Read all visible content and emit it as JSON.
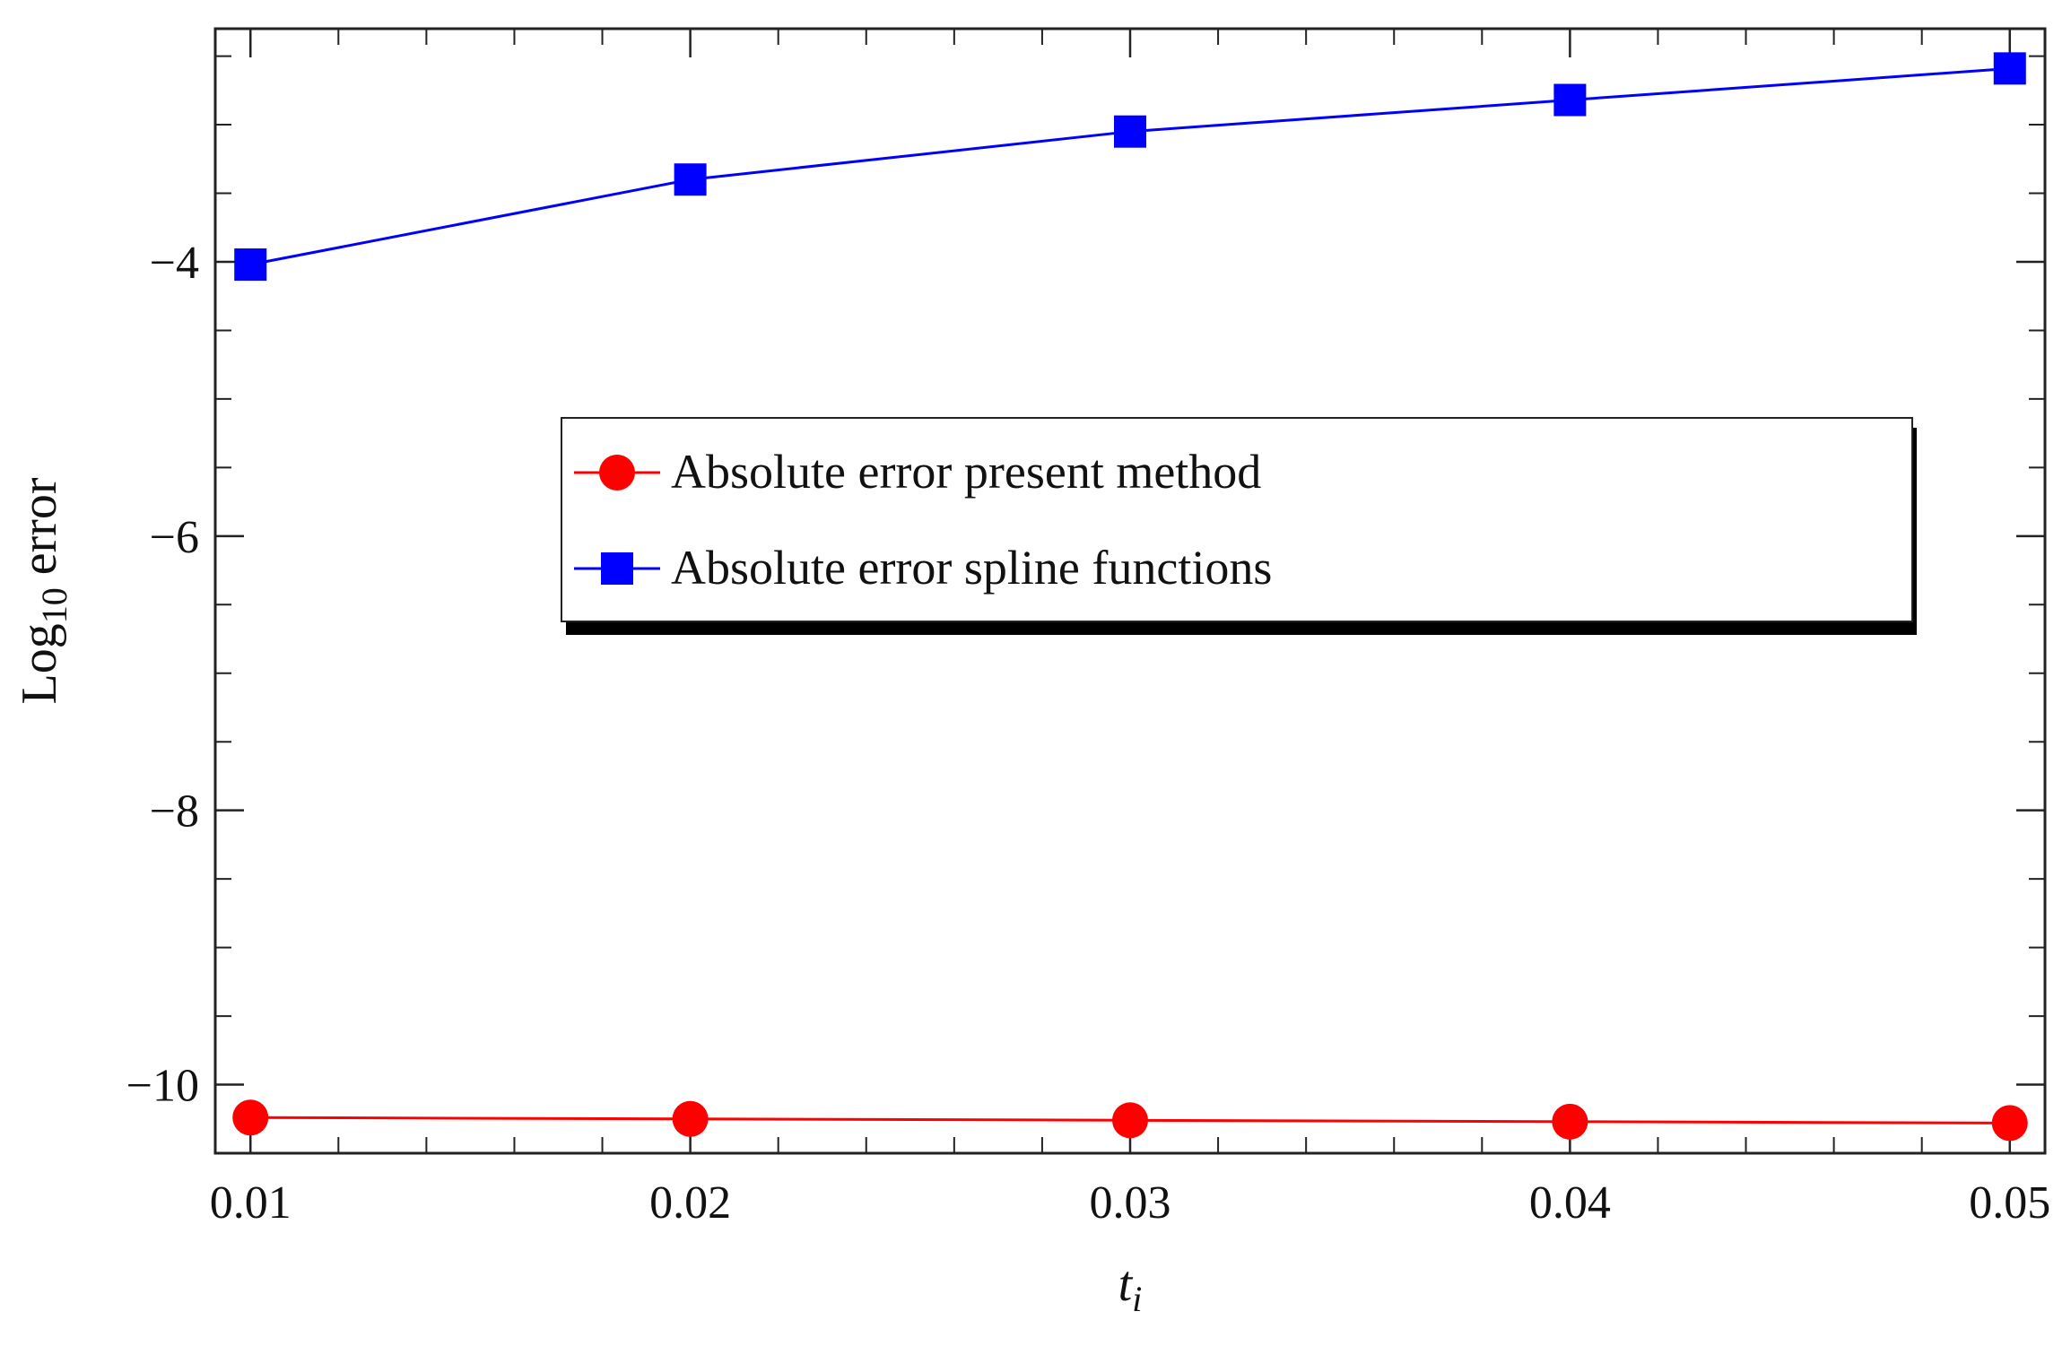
{
  "chart_data": {
    "type": "line",
    "title": "",
    "xlabel": "t",
    "xlabel_sub": "i",
    "ylabel": "Log",
    "ylabel_sub": "10",
    "ylabel_suffix": " error",
    "xlim": [
      0.0092,
      0.0508
    ],
    "ylim": [
      -10.5,
      -2.3
    ],
    "x_ticks": [
      0.01,
      0.02,
      0.03,
      0.04,
      0.05
    ],
    "x_tick_labels": [
      "0.01",
      "0.02",
      "0.03",
      "0.04",
      "0.05"
    ],
    "y_ticks": [
      -10,
      -8,
      -6,
      -4
    ],
    "y_tick_labels": [
      "−10",
      "−8",
      "−6",
      "−4"
    ],
    "x_minor_step": 0.002,
    "y_minor_step": 0.5,
    "grid": false,
    "legend_position": "center",
    "series": [
      {
        "name": "Absolute error present method",
        "color": "#ff0000",
        "marker": "circle",
        "x": [
          0.01,
          0.02,
          0.03,
          0.04,
          0.05
        ],
        "y": [
          -10.24,
          -10.25,
          -10.26,
          -10.27,
          -10.28
        ]
      },
      {
        "name": "Absolute error spline functions",
        "color": "#0000ff",
        "marker": "square",
        "x": [
          0.01,
          0.02,
          0.03,
          0.04,
          0.05
        ],
        "y": [
          -4.02,
          -3.4,
          -3.05,
          -2.82,
          -2.59
        ]
      }
    ]
  }
}
